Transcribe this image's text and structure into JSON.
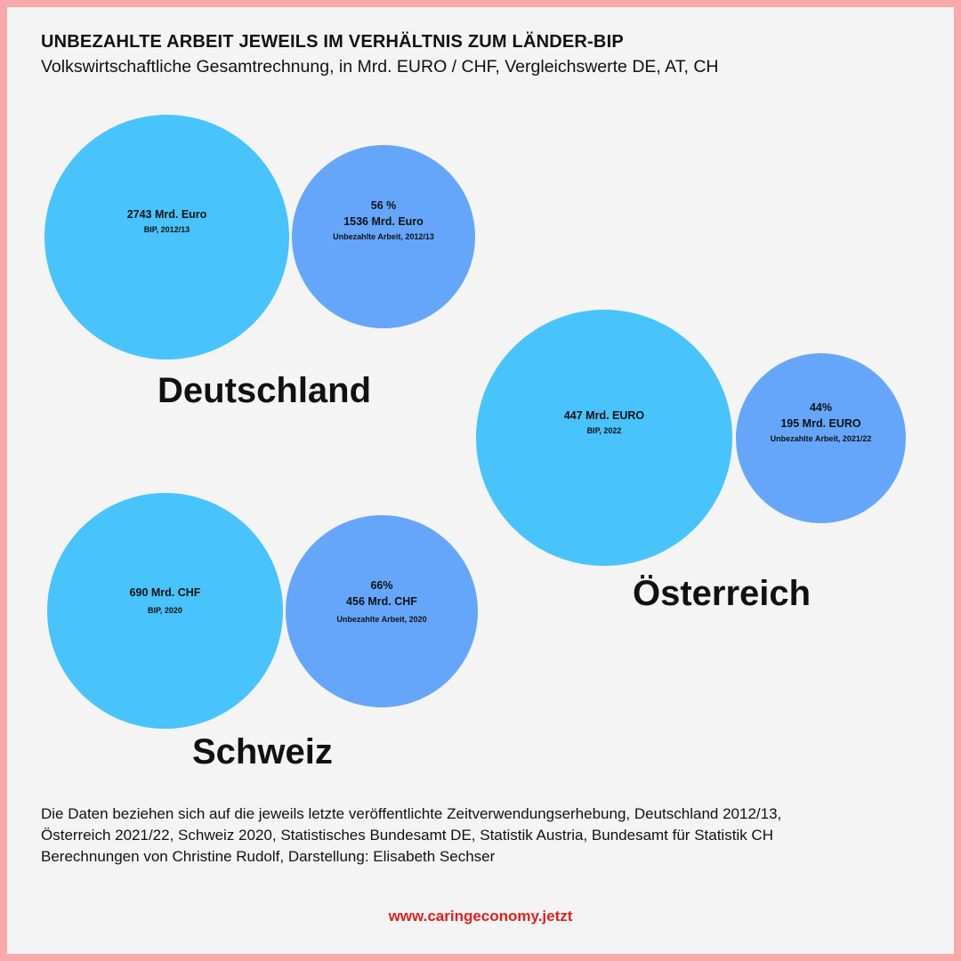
{
  "colors": {
    "frame": "#f7a9ab",
    "background": "#f4f4f4",
    "gdp_bubble": "#48c3fc",
    "unpaid_bubble": "#65a6fa",
    "url": "#e0201f"
  },
  "title": "UNBEZAHLTE ARBEIT JEWEILS IM VERHÄLTNIS ZUM LÄNDER-BIP",
  "subtitle": "Volkswirtschaftliche Gesamtrechnung, in Mrd. EURO / CHF, Vergleichswerte DE, AT, CH",
  "chart_data": {
    "type": "bubble",
    "countries": [
      {
        "name": "Deutschland",
        "currency": "EUR",
        "gdp": {
          "value": 2743,
          "label": "2743 Mrd. Euro",
          "caption": "BIP, 2012/13"
        },
        "unpaid": {
          "value": 1536,
          "percent_label": "56 %",
          "label": "1536 Mrd. Euro",
          "caption": "Unbezahlte Arbeit, 2012/13"
        }
      },
      {
        "name": "Österreich",
        "currency": "EUR",
        "gdp": {
          "value": 447,
          "label": "447 Mrd. EURO",
          "caption": "BIP, 2022"
        },
        "unpaid": {
          "value": 195,
          "percent_label": "44%",
          "label": "195 Mrd. EURO",
          "caption": "Unbezahlte Arbeit, 2021/22"
        }
      },
      {
        "name": "Schweiz",
        "currency": "CHF",
        "gdp": {
          "value": 690,
          "label": "690 Mrd. CHF",
          "caption": "BIP, 2020"
        },
        "unpaid": {
          "value": 456,
          "percent_label": "66%",
          "label": "456 Mrd. CHF",
          "caption": "Unbezahlte Arbeit, 2020"
        }
      }
    ]
  },
  "footnote": {
    "line1": "Die Daten beziehen sich auf die jeweils letzte veröffentlichte Zeitverwendungserhebung, Deutschland 2012/13,",
    "line2": "Österreich 2021/22, Schweiz 2020, Statistisches Bundesamt DE, Statistik Austria, Bundesamt für Statistik CH",
    "line3": "Berechnungen von Christine Rudolf, Darstellung: Elisabeth Sechser"
  },
  "url": "www.caringeconomy.jetzt"
}
